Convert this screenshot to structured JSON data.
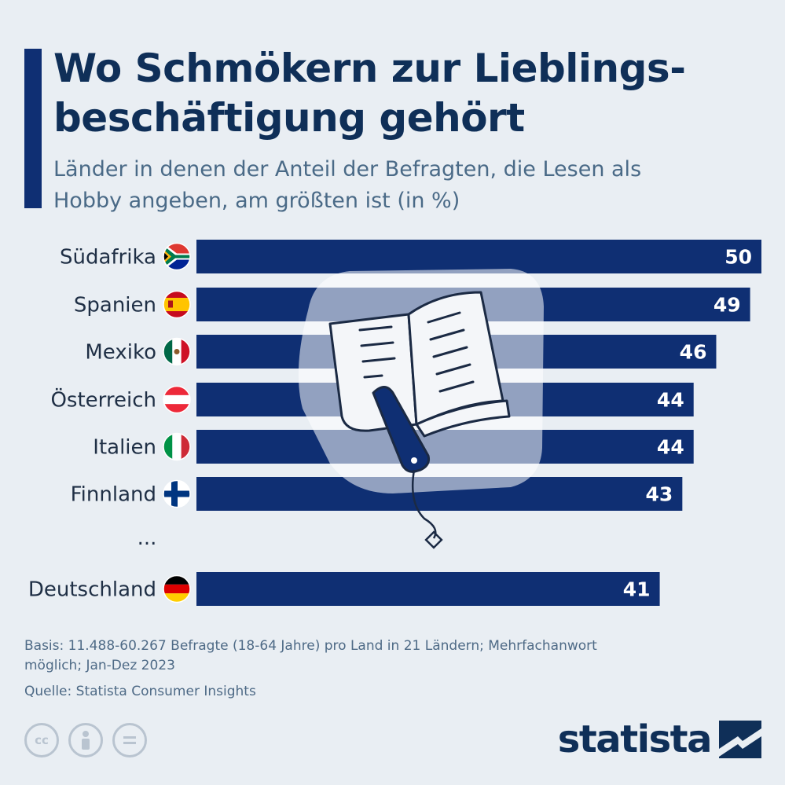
{
  "title": "Wo Schmökern zur Lieblings-beschäftigung gehört",
  "subtitle": "Länder in denen der Anteil der Befragten, die Lesen als Hobby angeben, am größten ist (in %)",
  "colors": {
    "bar": "#0f2f73",
    "title": "#0f2f58",
    "text": "#1f2f45",
    "background": "#e9eef3"
  },
  "chart_data": {
    "type": "bar",
    "orientation": "horizontal",
    "categories": [
      "Südafrika",
      "Spanien",
      "Mexiko",
      "Österreich",
      "Italien",
      "Finnland",
      "Deutschland"
    ],
    "values": [
      50,
      49,
      46,
      44,
      44,
      43,
      41
    ],
    "gap_label": "...",
    "xlim": [
      0,
      50
    ]
  },
  "notes": {
    "basis": "Basis: 11.488-60.267 Befragte (18-64 Jahre) pro Land in 21 Ländern; Mehrfachanwort möglich; Jan-Dez 2023",
    "source": "Quelle: Statista Consumer Insights"
  },
  "brand": "statista",
  "license_icons": [
    "cc-icon",
    "attribution-icon",
    "no-derivatives-icon"
  ]
}
